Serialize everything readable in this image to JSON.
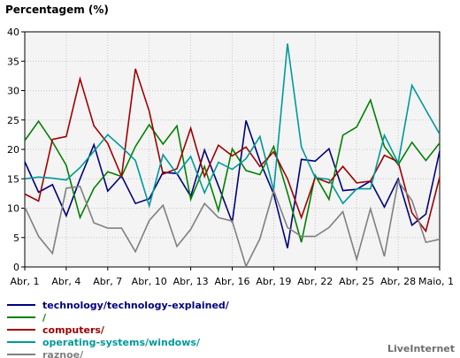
{
  "chart_data": {
    "type": "line",
    "title": "Percentagem (%)",
    "ylim": [
      0,
      40
    ],
    "yticks": [
      0,
      5,
      10,
      15,
      20,
      25,
      30,
      35,
      40
    ],
    "grid": true,
    "legend_position": "bottom-left",
    "x_tick_labels": [
      "Abr, 1",
      "Abr, 4",
      "Abr, 7",
      "Abr, 10",
      "Abr, 13",
      "Abr, 16",
      "Abr, 19",
      "Abr, 22",
      "Abr, 25",
      "Abr, 28",
      "Maio, 1"
    ],
    "x_tick_every": 3,
    "categories": [
      "Abr, 1",
      "Abr, 2",
      "Abr, 3",
      "Abr, 4",
      "Abr, 5",
      "Abr, 6",
      "Abr, 7",
      "Abr, 8",
      "Abr, 9",
      "Abr, 10",
      "Abr, 11",
      "Abr, 12",
      "Abr, 13",
      "Abr, 14",
      "Abr, 15",
      "Abr, 16",
      "Abr, 17",
      "Abr, 18",
      "Abr, 19",
      "Abr, 20",
      "Abr, 21",
      "Abr, 22",
      "Abr, 23",
      "Abr, 24",
      "Abr, 25",
      "Abr, 26",
      "Abr, 27",
      "Abr, 28",
      "Abr, 29",
      "Abr, 30",
      "Maio, 1"
    ],
    "series": [
      {
        "name": "technology/technology-explained/",
        "color": "#000080",
        "values": [
          17.9,
          12.7,
          14.0,
          8.7,
          15.0,
          20.8,
          12.9,
          15.5,
          10.8,
          11.6,
          16.1,
          15.9,
          12.0,
          19.9,
          13.8,
          7.6,
          24.9,
          18.0,
          12.4,
          3.2,
          18.3,
          18.0,
          20.1,
          13.0,
          13.2,
          14.6,
          10.2,
          15.0,
          7.1,
          9.0,
          19.7
        ]
      },
      {
        "name": "/",
        "color": "#008000",
        "values": [
          21.5,
          24.8,
          21.3,
          17.3,
          8.4,
          13.4,
          16.2,
          15.4,
          20.5,
          24.2,
          20.9,
          24.0,
          11.5,
          17.1,
          9.6,
          20.1,
          16.4,
          15.7,
          20.5,
          12.6,
          4.2,
          15.6,
          11.5,
          22.4,
          23.8,
          28.4,
          20.5,
          17.4,
          21.2,
          18.1,
          21.1
        ]
      },
      {
        "name": "computers/",
        "color": "#a00000",
        "values": [
          12.4,
          11.2,
          21.7,
          22.2,
          32.0,
          24.0,
          21.0,
          15.4,
          33.7,
          26.5,
          15.8,
          16.7,
          23.6,
          15.4,
          20.7,
          18.9,
          20.4,
          17.1,
          19.6,
          15.0,
          8.4,
          15.2,
          14.3,
          17.1,
          14.3,
          14.6,
          19.0,
          17.9,
          9.2,
          6.1,
          15.3
        ]
      },
      {
        "name": "operating-systems/windows/",
        "color": "#009999",
        "values": [
          15.0,
          15.3,
          15.1,
          14.8,
          16.9,
          19.7,
          22.5,
          20.4,
          18.1,
          10.4,
          19.1,
          15.8,
          18.8,
          12.6,
          17.8,
          16.6,
          18.4,
          22.2,
          13.0,
          38.0,
          20.4,
          15.2,
          14.9,
          10.8,
          13.3,
          13.3,
          22.4,
          17.7,
          30.9,
          26.7,
          22.6
        ]
      },
      {
        "name": "raznoe/",
        "color": "#808080",
        "values": [
          10.2,
          5.2,
          2.3,
          13.4,
          13.7,
          7.5,
          6.6,
          6.6,
          2.6,
          7.9,
          10.5,
          3.5,
          6.4,
          10.8,
          8.4,
          7.8,
          0.1,
          4.8,
          13.0,
          6.7,
          5.2,
          5.2,
          6.7,
          9.4,
          1.3,
          9.9,
          1.8,
          14.6,
          11.3,
          4.2,
          4.7
        ]
      }
    ],
    "credit": "LiveInternet"
  }
}
